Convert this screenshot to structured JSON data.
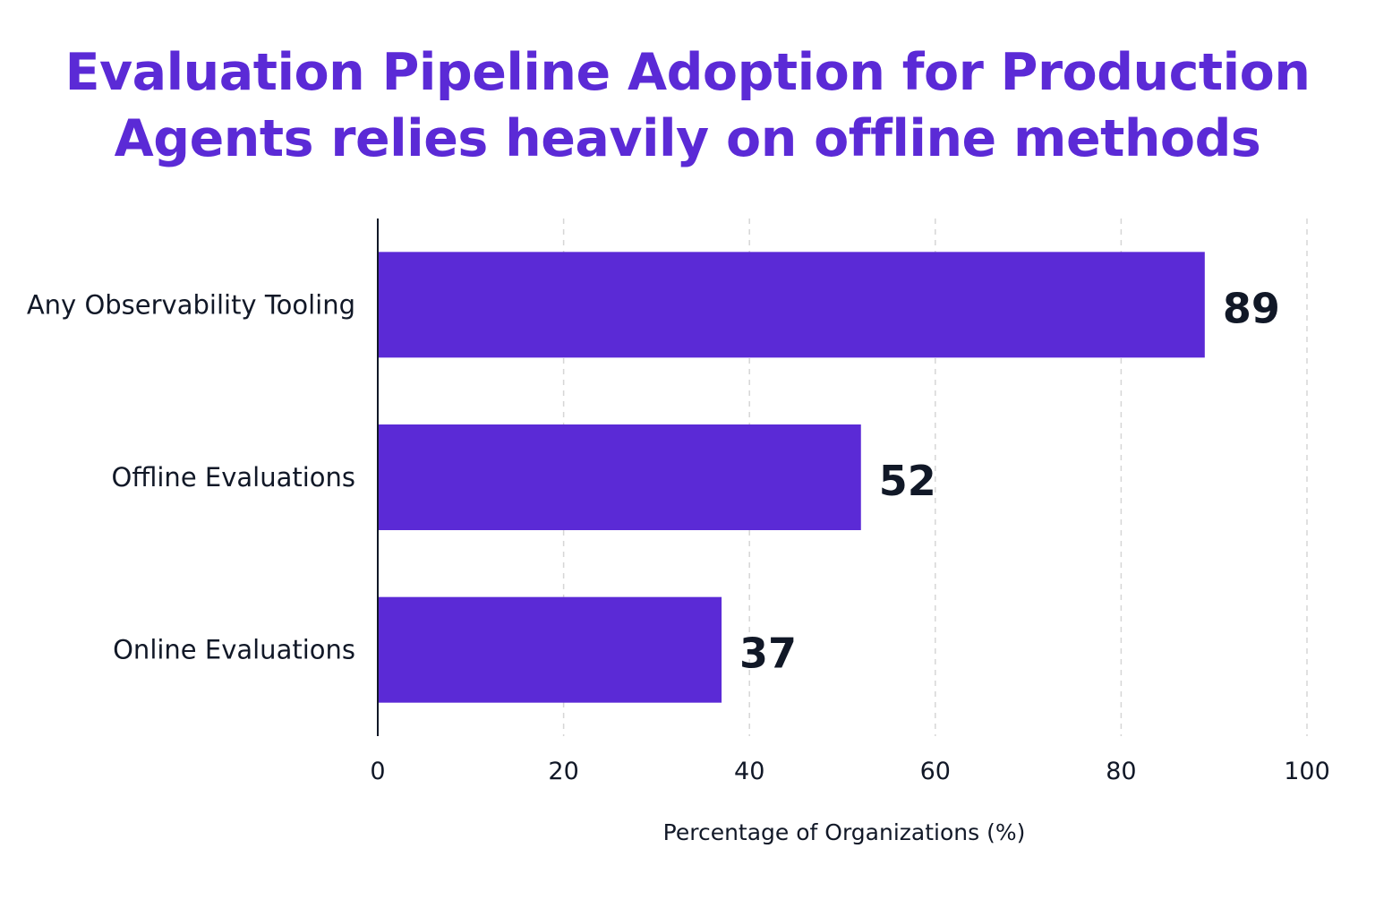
{
  "chart_data": {
    "type": "bar",
    "orientation": "horizontal",
    "title_lines": [
      "Evaluation Pipeline Adoption for Production",
      "Agents relies heavily on offline methods"
    ],
    "categories": [
      "Any Observability Tooling",
      "Offline Evaluations",
      "Online Evaluations"
    ],
    "values": [
      89,
      52,
      37
    ],
    "xlabel": "Percentage of Organizations (%)",
    "ylabel": "",
    "xlim": [
      0,
      100
    ],
    "xticks": [
      0,
      20,
      40,
      60,
      80,
      100
    ],
    "grid": "vertical-dashed",
    "legend": "none",
    "colors": {
      "title": "#5b2ad6",
      "bar": "#5b2ad6",
      "text": "#111827",
      "axis": "#111827",
      "grid": "#d6d6d6"
    }
  }
}
